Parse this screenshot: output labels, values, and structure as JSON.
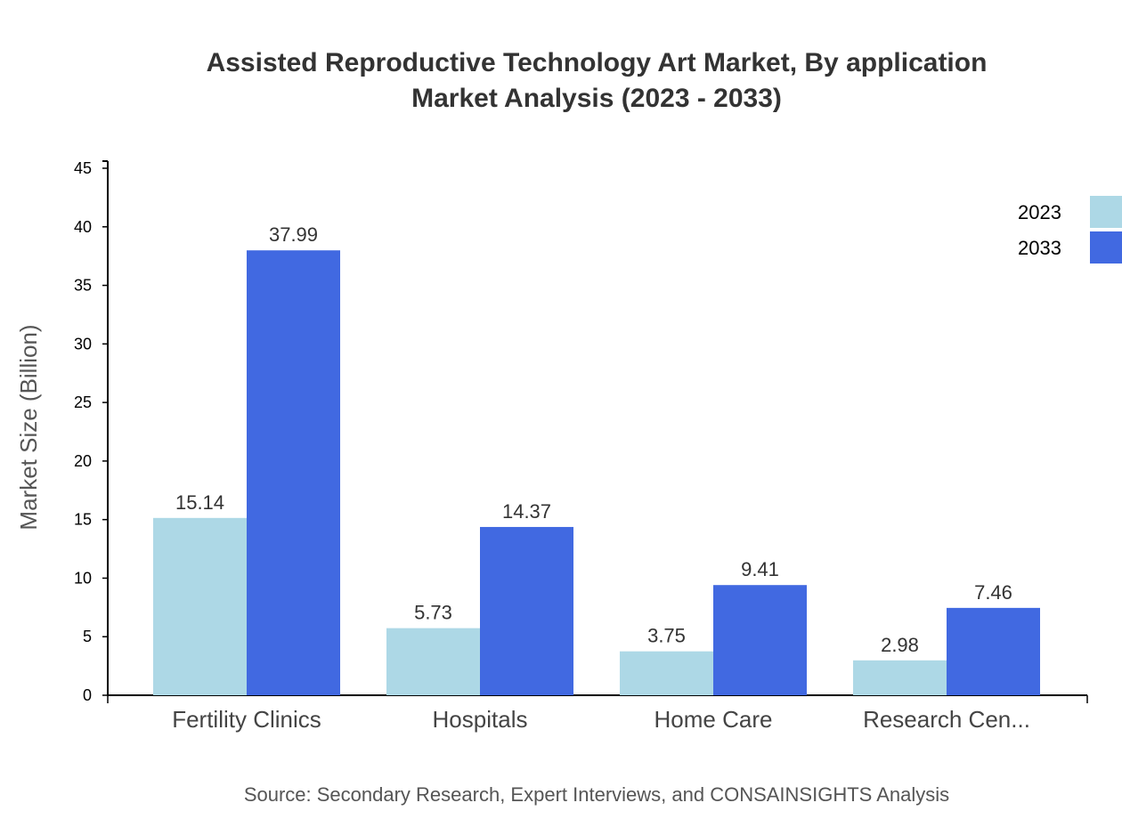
{
  "chart_data": {
    "type": "bar",
    "title": [
      "Assisted Reproductive Technology Art Market, By application",
      "Market Analysis (2023 - 2033)"
    ],
    "ylabel": "Market Size (Billion)",
    "xlabel": "",
    "categories": [
      "Fertility Clinics",
      "Hospitals",
      "Home Care",
      "Research Cen..."
    ],
    "series": [
      {
        "name": "2023",
        "color": "#add8e6",
        "values": [
          15.14,
          5.73,
          3.75,
          2.98
        ]
      },
      {
        "name": "2033",
        "color": "#4169e1",
        "values": [
          37.99,
          14.37,
          9.41,
          7.46
        ]
      }
    ],
    "ylim": [
      0,
      45
    ],
    "yticks": [
      0,
      5,
      10,
      15,
      20,
      25,
      30,
      35,
      40,
      45
    ],
    "grid": false,
    "legend": "top-right",
    "source": "Source: Secondary Research, Expert Interviews, and CONSAINSIGHTS Analysis"
  }
}
